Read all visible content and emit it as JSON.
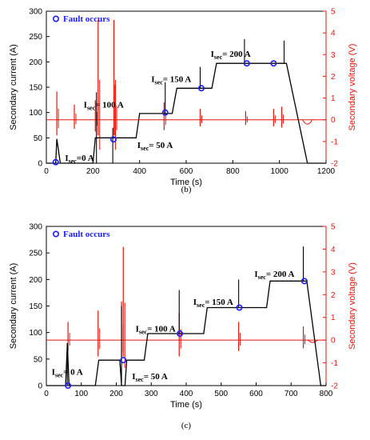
{
  "chart_data": [
    {
      "id": "b",
      "type": "line",
      "caption": "(b)",
      "xlabel": "Time (s)",
      "ylabel": "Secondary current (A)",
      "y2label": "Secondary voltage (V)",
      "xlim": [
        0,
        1200
      ],
      "ylim": [
        0,
        300
      ],
      "y2lim": [
        -2,
        5
      ],
      "xticks": [
        "0",
        "200",
        "400",
        "600",
        "800",
        "1000",
        "1200"
      ],
      "yticks": [
        "0",
        "50",
        "100",
        "150",
        "200",
        "250",
        "300"
      ],
      "y2ticks": [
        "-2",
        "-1",
        "0",
        "1",
        "2",
        "3",
        "4",
        "5"
      ],
      "legend": {
        "label": "Fault occurs",
        "placement": "top-left"
      },
      "current_series": [
        [
          0,
          0
        ],
        [
          40,
          0
        ],
        [
          45,
          48
        ],
        [
          60,
          0
        ],
        [
          200,
          0
        ],
        [
          210,
          50
        ],
        [
          385,
          50
        ],
        [
          400,
          98
        ],
        [
          540,
          98
        ],
        [
          560,
          148
        ],
        [
          710,
          148
        ],
        [
          730,
          197
        ],
        [
          1030,
          197
        ],
        [
          1120,
          0
        ],
        [
          1200,
          0
        ]
      ],
      "current_spikes": [
        [
          215,
          0,
          140
        ],
        [
          285,
          0,
          70
        ],
        [
          510,
          98,
          160
        ],
        [
          660,
          148,
          190
        ],
        [
          850,
          197,
          245
        ],
        [
          1020,
          197,
          242
        ]
      ],
      "voltage_baseline": 0,
      "voltage_spikes": [
        [
          45,
          1.3
        ],
        [
          120,
          0.7
        ],
        [
          210,
          0.9
        ],
        [
          222,
          4.6
        ],
        [
          290,
          4.6
        ],
        [
          295,
          1.6
        ],
        [
          505,
          0.8
        ],
        [
          660,
          0.5
        ],
        [
          855,
          0.4
        ],
        [
          975,
          0.5
        ],
        [
          1010,
          0.6
        ]
      ],
      "voltage_dip": [
        [
          1120,
          -0.4
        ]
      ],
      "fault_points": [
        [
          40,
          2
        ],
        [
          288,
          47
        ],
        [
          510,
          100
        ],
        [
          665,
          148
        ],
        [
          860,
          197
        ],
        [
          975,
          197
        ]
      ],
      "annotations": [
        {
          "text": "I",
          "sub": "sec",
          "rest": "=0 A",
          "x": 80,
          "y": 5
        },
        {
          "text": "I",
          "sub": "sec",
          "rest": "= 50 A",
          "x": 390,
          "y": 30
        },
        {
          "text": "I",
          "sub": "sec",
          "rest": "= 100 A",
          "x": 160,
          "y": 110
        },
        {
          "text": "I",
          "sub": "sec",
          "rest": "= 150 A",
          "x": 450,
          "y": 160
        },
        {
          "text": "I",
          "sub": "sec",
          "rest": "= 200 A",
          "x": 705,
          "y": 210
        }
      ]
    },
    {
      "id": "c",
      "type": "line",
      "caption": "(c)",
      "xlabel": "Time (s)",
      "ylabel": "Secondary current (A)",
      "y2label": "Secondary voltage (V)",
      "xlim": [
        0,
        800
      ],
      "ylim": [
        0,
        300
      ],
      "y2lim": [
        -2,
        5
      ],
      "xticks": [
        "0",
        "100",
        "200",
        "300",
        "400",
        "500",
        "600",
        "700",
        "800"
      ],
      "yticks": [
        "0",
        "50",
        "100",
        "150",
        "200",
        "250",
        "300"
      ],
      "y2ticks": [
        "-2",
        "-1",
        "0",
        "1",
        "2",
        "3",
        "4",
        "5"
      ],
      "legend": {
        "label": "Fault occurs",
        "placement": "top-left"
      },
      "current_series": [
        [
          0,
          0
        ],
        [
          55,
          0
        ],
        [
          60,
          80
        ],
        [
          65,
          0
        ],
        [
          140,
          0
        ],
        [
          150,
          48
        ],
        [
          210,
          48
        ],
        [
          215,
          0
        ],
        [
          225,
          0
        ],
        [
          230,
          48
        ],
        [
          280,
          48
        ],
        [
          290,
          98
        ],
        [
          450,
          98
        ],
        [
          460,
          147
        ],
        [
          630,
          147
        ],
        [
          640,
          197
        ],
        [
          745,
          197
        ],
        [
          785,
          0
        ],
        [
          800,
          0
        ]
      ],
      "current_spikes": [
        [
          60,
          0,
          80
        ],
        [
          215,
          0,
          150
        ],
        [
          380,
          98,
          180
        ],
        [
          550,
          147,
          200
        ],
        [
          735,
          197,
          262
        ]
      ],
      "voltage_baseline": 0,
      "voltage_spikes": [
        [
          62,
          0.8
        ],
        [
          148,
          1.3
        ],
        [
          215,
          1.7
        ],
        [
          220,
          4.1
        ],
        [
          380,
          1.2
        ],
        [
          550,
          0.8
        ],
        [
          735,
          0.6
        ]
      ],
      "voltage_dip": [
        [
          762,
          -0.2
        ]
      ],
      "fault_points": [
        [
          62,
          0
        ],
        [
          220,
          48
        ],
        [
          382,
          98
        ],
        [
          552,
          147
        ],
        [
          738,
          197
        ]
      ],
      "annotations": [
        {
          "text": "I",
          "sub": "sec",
          "rest": "= 0 A",
          "x": 15,
          "y": 20
        },
        {
          "text": "I",
          "sub": "sec",
          "rest": "= 50 A",
          "x": 245,
          "y": 12
        },
        {
          "text": "I",
          "sub": "sec",
          "rest": "= 100 A",
          "x": 255,
          "y": 102
        },
        {
          "text": "I",
          "sub": "sec",
          "rest": "= 150 A",
          "x": 420,
          "y": 152
        },
        {
          "text": "I",
          "sub": "sec",
          "rest": "= 200 A",
          "x": 595,
          "y": 205
        }
      ]
    }
  ],
  "colors": {
    "current": "#000000",
    "voltage": "#e8140a",
    "fault": "#1a1aff"
  }
}
